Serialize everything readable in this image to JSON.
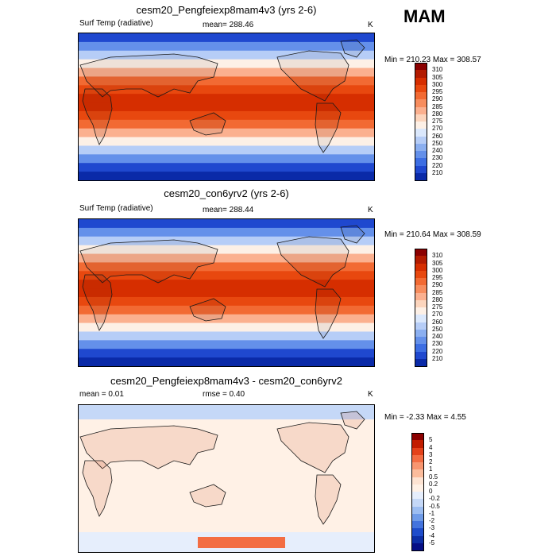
{
  "season": "MAM",
  "panels": [
    {
      "title": "cesm20_Pengfeiexp8mam4v3 (yrs 2-6)",
      "left_label": "Surf Temp (radiative)",
      "center_label": "mean= 288.46",
      "unit": "K",
      "minmax": "Min = 210.23 Max = 308.57",
      "cbar_labels": [
        "310",
        "305",
        "300",
        "295",
        "290",
        "285",
        "280",
        "275",
        "270",
        "260",
        "250",
        "240",
        "230",
        "220",
        "210"
      ]
    },
    {
      "title": "cesm20_con6yrv2 (yrs 2-6)",
      "left_label": "Surf Temp (radiative)",
      "center_label": "mean= 288.44",
      "unit": "K",
      "minmax": "Min = 210.64 Max = 308.59",
      "cbar_labels": [
        "310",
        "305",
        "300",
        "295",
        "290",
        "285",
        "280",
        "275",
        "270",
        "260",
        "250",
        "240",
        "230",
        "220",
        "210"
      ]
    },
    {
      "title": "cesm20_Pengfeiexp8mam4v3 - cesm20_con6yrv2",
      "left_label": "mean =   0.01",
      "center_label": "rmse =   0.40",
      "unit": "K",
      "minmax": "Min =  -2.33 Max =   4.55",
      "cbar_labels": [
        "5",
        "4",
        "3",
        "2",
        "1",
        "0.5",
        "0.2",
        "0",
        "-0.2",
        "-0.5",
        "-1",
        "-2",
        "-3",
        "-4",
        "-5"
      ]
    }
  ],
  "colors": {
    "abs_scale": [
      "#8b0000",
      "#b31b00",
      "#d62e00",
      "#e8480f",
      "#f26a33",
      "#f78d5e",
      "#fbb08f",
      "#fcd5bd",
      "#fdf0e6",
      "#dbe8fc",
      "#b6cdf7",
      "#8baff0",
      "#6490ea",
      "#3d6ee3",
      "#1f48cf",
      "#0a2aa8"
    ],
    "diff_scale": [
      "#8b0000",
      "#c21d00",
      "#e4421a",
      "#f36d43",
      "#f89670",
      "#fbbc9c",
      "#fde3d2",
      "#fff1e6",
      "#e6eefc",
      "#c5d8f7",
      "#9cbdf1",
      "#6f9be8",
      "#4474de",
      "#1f4dcb",
      "#0d2fa6",
      "#060f85"
    ],
    "land": "#1a1a1a"
  }
}
